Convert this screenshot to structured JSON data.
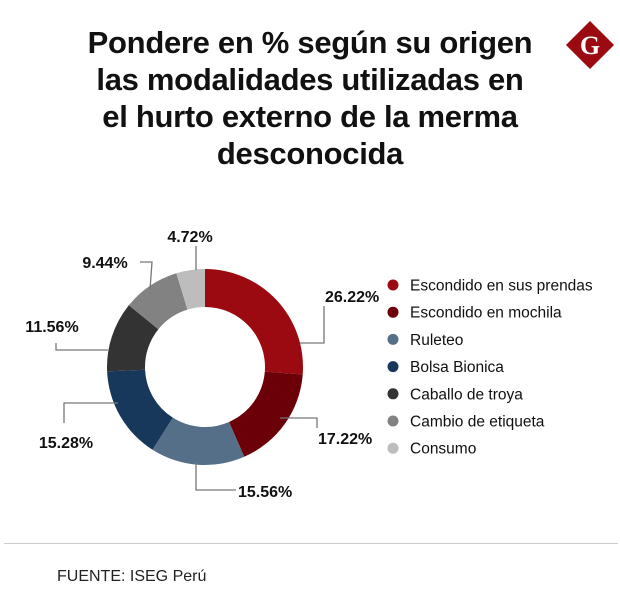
{
  "title_lines": [
    "Pondere en % según su origen",
    "las modalidades utilizadas en",
    "el hurto externo de la merma",
    "desconocida"
  ],
  "logo": "G",
  "source": "FUENTE: ISEG Perú",
  "chart_data": {
    "type": "pie",
    "donut": true,
    "title": "Pondere en % según su origen las modalidades utilizadas en el hurto externo de la merma desconocida",
    "legend_position": "right",
    "categories": [
      "Escondido en sus prendas",
      "Escondido en mochila",
      "Ruleteo",
      "Bolsa Bionica",
      "Caballo de troya",
      "Cambio de etiqueta",
      "Consumo"
    ],
    "values": [
      26.22,
      17.22,
      15.56,
      15.28,
      11.56,
      9.44,
      4.72
    ],
    "labels": [
      "26.22%",
      "17.22%",
      "15.56%",
      "15.28%",
      "11.56%",
      "9.44%",
      "4.72%"
    ],
    "colors": [
      "#9b0a10",
      "#6b0008",
      "#566f88",
      "#17385a",
      "#333333",
      "#828282",
      "#bdbdbd"
    ]
  }
}
